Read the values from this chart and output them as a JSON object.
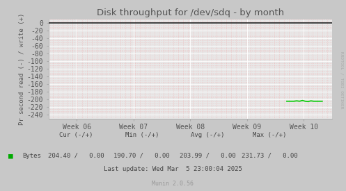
{
  "title": "Disk throughput for /dev/sdq - by month",
  "ylabel": "Pr second read (-) / write (+)",
  "background_color": "#c8c8c8",
  "plot_bg_color": "#e8e8e8",
  "grid_color_minor": "#f0a0a0",
  "grid_color_major": "#ffffff",
  "top_border_color": "#222222",
  "ylim": [
    -250,
    10
  ],
  "yticks": [
    0,
    -20,
    -40,
    -60,
    -80,
    -100,
    -120,
    -140,
    -160,
    -180,
    -200,
    -220,
    -240
  ],
  "xtick_labels": [
    "Week 06",
    "Week 07",
    "Week 08",
    "Week 09",
    "Week 10"
  ],
  "xtick_positions": [
    0.1,
    0.3,
    0.5,
    0.7,
    0.9
  ],
  "line_color": "#00cc00",
  "line_data_x": [
    0.84,
    0.855,
    0.865,
    0.875,
    0.885,
    0.895,
    0.905,
    0.915,
    0.925,
    0.935,
    0.945,
    0.955,
    0.965
  ],
  "line_data_y": [
    -205,
    -205,
    -205,
    -204,
    -205,
    -203,
    -205,
    -206,
    -204,
    -205,
    -205,
    -205,
    -205
  ],
  "last_update": "Last update: Wed Mar  5 23:00:04 2025",
  "munin_version": "Munin 2.0.56",
  "watermark": "RRDTOOL / TOBI OETIKER",
  "text_color": "#555555",
  "footer_color": "#444444",
  "watermark_color": "#aaaaaa",
  "legend_color": "#00aa00",
  "cur_label": "Cur (-/+)",
  "min_label": "Min (-/+)",
  "avg_label": "Avg (-/+)",
  "max_label": "Max (-/+)",
  "bytes_label": "Bytes",
  "cur_val": "204.40 /   0.00",
  "min_val": "190.70 /   0.00",
  "avg_val": "203.99 /   0.00",
  "max_val": "231.73 /   0.00"
}
